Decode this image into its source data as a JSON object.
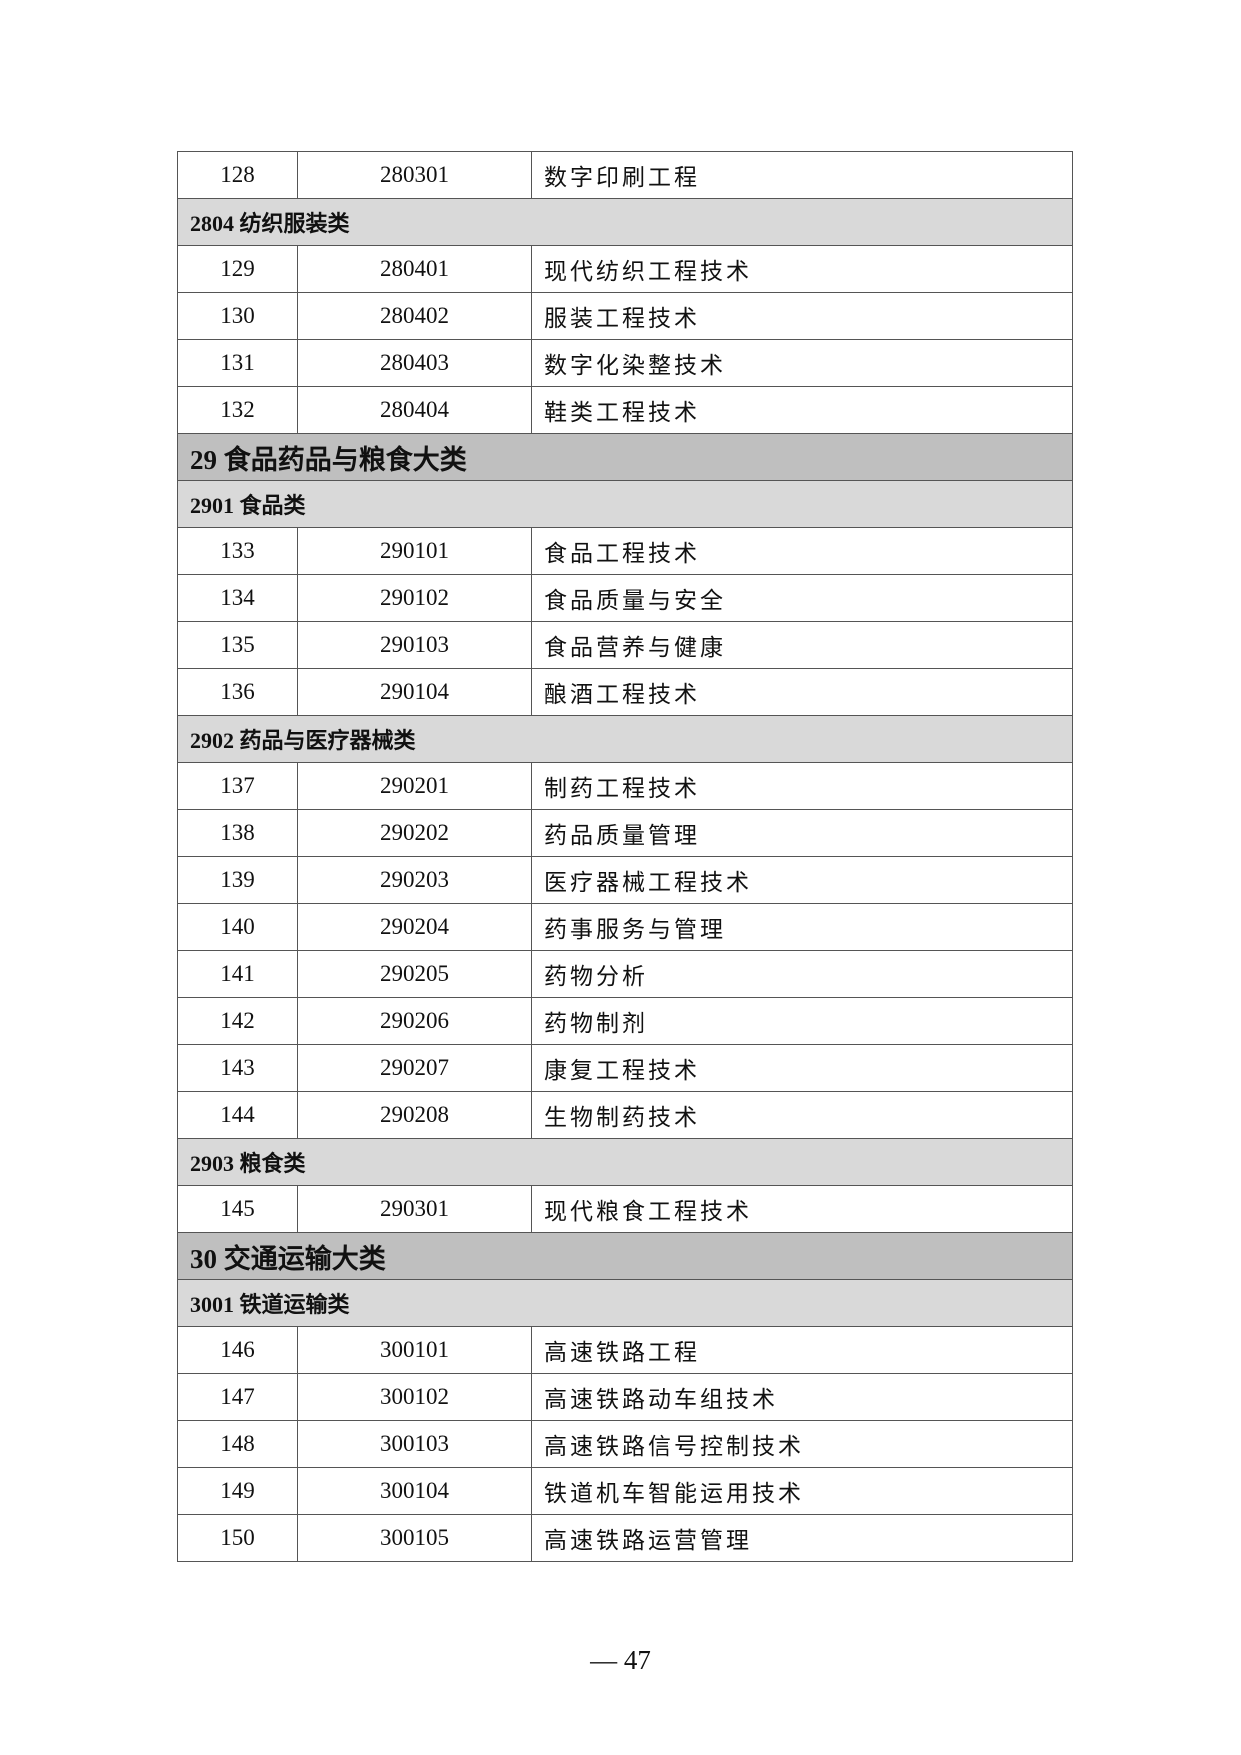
{
  "rows": [
    {
      "type": "item",
      "no": "128",
      "code": "280301",
      "name": "数字印刷工程"
    },
    {
      "type": "sub",
      "label": "2804 纺织服装类"
    },
    {
      "type": "item",
      "no": "129",
      "code": "280401",
      "name": "现代纺织工程技术"
    },
    {
      "type": "item",
      "no": "130",
      "code": "280402",
      "name": "服装工程技术"
    },
    {
      "type": "item",
      "no": "131",
      "code": "280403",
      "name": "数字化染整技术"
    },
    {
      "type": "item",
      "no": "132",
      "code": "280404",
      "name": "鞋类工程技术"
    },
    {
      "type": "major",
      "label": "29 食品药品与粮食大类"
    },
    {
      "type": "sub",
      "label": "2901 食品类"
    },
    {
      "type": "item",
      "no": "133",
      "code": "290101",
      "name": "食品工程技术"
    },
    {
      "type": "item",
      "no": "134",
      "code": "290102",
      "name": "食品质量与安全"
    },
    {
      "type": "item",
      "no": "135",
      "code": "290103",
      "name": "食品营养与健康"
    },
    {
      "type": "item",
      "no": "136",
      "code": "290104",
      "name": "酿酒工程技术"
    },
    {
      "type": "sub",
      "label": "2902 药品与医疗器械类"
    },
    {
      "type": "item",
      "no": "137",
      "code": "290201",
      "name": "制药工程技术"
    },
    {
      "type": "item",
      "no": "138",
      "code": "290202",
      "name": "药品质量管理"
    },
    {
      "type": "item",
      "no": "139",
      "code": "290203",
      "name": "医疗器械工程技术"
    },
    {
      "type": "item",
      "no": "140",
      "code": "290204",
      "name": "药事服务与管理"
    },
    {
      "type": "item",
      "no": "141",
      "code": "290205",
      "name": "药物分析"
    },
    {
      "type": "item",
      "no": "142",
      "code": "290206",
      "name": "药物制剂"
    },
    {
      "type": "item",
      "no": "143",
      "code": "290207",
      "name": "康复工程技术"
    },
    {
      "type": "item",
      "no": "144",
      "code": "290208",
      "name": "生物制药技术"
    },
    {
      "type": "sub",
      "label": "2903 粮食类"
    },
    {
      "type": "item",
      "no": "145",
      "code": "290301",
      "name": "现代粮食工程技术"
    },
    {
      "type": "major",
      "label": "30 交通运输大类"
    },
    {
      "type": "sub",
      "label": "3001 铁道运输类"
    },
    {
      "type": "item",
      "no": "146",
      "code": "300101",
      "name": "高速铁路工程"
    },
    {
      "type": "item",
      "no": "147",
      "code": "300102",
      "name": "高速铁路动车组技术"
    },
    {
      "type": "item",
      "no": "148",
      "code": "300103",
      "name": "高速铁路信号控制技术"
    },
    {
      "type": "item",
      "no": "149",
      "code": "300104",
      "name": "铁道机车智能运用技术"
    },
    {
      "type": "item",
      "no": "150",
      "code": "300105",
      "name": "高速铁路运营管理"
    }
  ],
  "page_number": "— 47"
}
